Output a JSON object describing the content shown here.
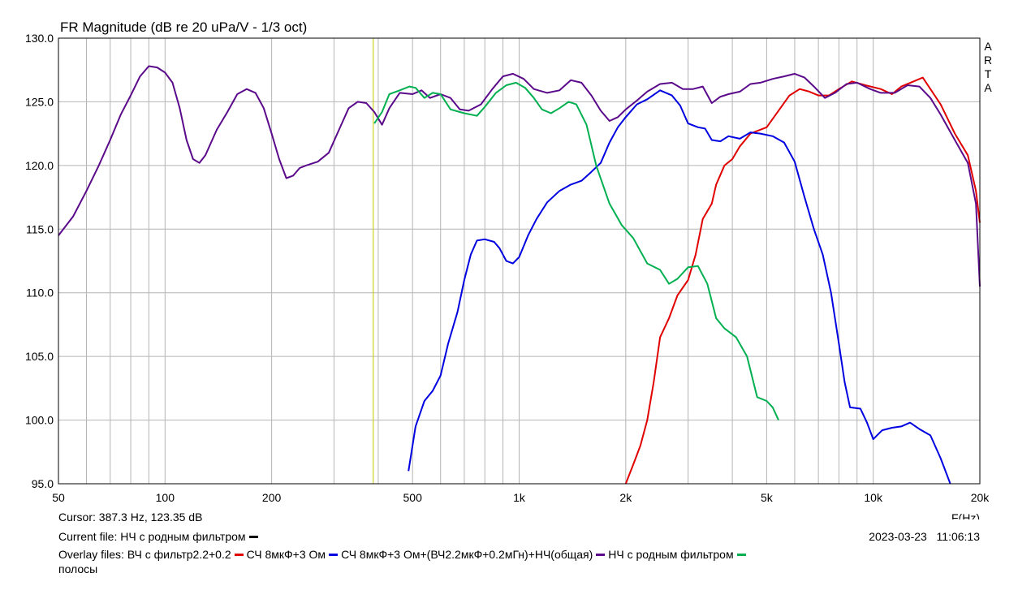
{
  "chart_data": {
    "type": "line",
    "title": "FR Magnitude (dB re 20 uPa/V - 1/3 oct)",
    "side_label": "ARTA",
    "xlabel": "F(Hz)",
    "x_scale": "log",
    "xlim": [
      50,
      20000
    ],
    "ylim": [
      95,
      130
    ],
    "x_ticks": [
      {
        "value": 50,
        "label": "50"
      },
      {
        "value": 100,
        "label": "100"
      },
      {
        "value": 200,
        "label": "200"
      },
      {
        "value": 500,
        "label": "500"
      },
      {
        "value": 1000,
        "label": "1k"
      },
      {
        "value": 2000,
        "label": "2k"
      },
      {
        "value": 5000,
        "label": "5k"
      },
      {
        "value": 10000,
        "label": "10k"
      },
      {
        "value": 20000,
        "label": "20k"
      }
    ],
    "y_ticks": [
      "130.0",
      "125.0",
      "120.0",
      "115.0",
      "110.0",
      "105.0",
      "100.0",
      "95.0"
    ],
    "grid": true,
    "cursor_freq": 387.3,
    "series": [
      {
        "name": "ВЧ с фильтр2.2+0.2",
        "color": "#e00000",
        "points": [
          [
            2000,
            95
          ],
          [
            2100,
            96.5
          ],
          [
            2200,
            98
          ],
          [
            2300,
            100
          ],
          [
            2400,
            103
          ],
          [
            2500,
            106.5
          ],
          [
            2650,
            108
          ],
          [
            2800,
            109.8
          ],
          [
            3000,
            111
          ],
          [
            3150,
            113
          ],
          [
            3300,
            115.8
          ],
          [
            3500,
            117
          ],
          [
            3600,
            118.5
          ],
          [
            3800,
            120
          ],
          [
            4000,
            120.5
          ],
          [
            4200,
            121.5
          ],
          [
            4500,
            122.5
          ],
          [
            5000,
            123
          ],
          [
            5400,
            124.3
          ],
          [
            5800,
            125.5
          ],
          [
            6200,
            126
          ],
          [
            6600,
            125.8
          ],
          [
            7000,
            125.5
          ],
          [
            7500,
            125.5
          ],
          [
            8000,
            126
          ],
          [
            8700,
            126.6
          ],
          [
            9500,
            126.3
          ],
          [
            10500,
            126
          ],
          [
            11300,
            125.6
          ],
          [
            12000,
            126.2
          ],
          [
            13000,
            126.6
          ],
          [
            13800,
            126.9
          ],
          [
            14500,
            126
          ],
          [
            15500,
            124.8
          ],
          [
            17000,
            122.5
          ],
          [
            18500,
            120.8
          ],
          [
            19500,
            118
          ],
          [
            20000,
            115.5
          ]
        ]
      },
      {
        "name": "СЧ 8мкФ+3 Ом",
        "color": "#0000e0",
        "points": [
          [
            487,
            96
          ],
          [
            510,
            99.5
          ],
          [
            540,
            101.5
          ],
          [
            570,
            102.3
          ],
          [
            600,
            103.5
          ],
          [
            630,
            106
          ],
          [
            670,
            108.5
          ],
          [
            700,
            111
          ],
          [
            730,
            113
          ],
          [
            760,
            114.1
          ],
          [
            800,
            114.2
          ],
          [
            850,
            114
          ],
          [
            880,
            113.5
          ],
          [
            920,
            112.5
          ],
          [
            960,
            112.3
          ],
          [
            1000,
            112.8
          ],
          [
            1060,
            114.5
          ],
          [
            1120,
            115.8
          ],
          [
            1200,
            117.1
          ],
          [
            1300,
            118
          ],
          [
            1400,
            118.5
          ],
          [
            1500,
            118.8
          ],
          [
            1600,
            119.5
          ],
          [
            1700,
            120.2
          ],
          [
            1800,
            121.8
          ],
          [
            1900,
            123
          ],
          [
            2000,
            123.8
          ],
          [
            2150,
            124.8
          ],
          [
            2300,
            125.2
          ],
          [
            2500,
            125.9
          ],
          [
            2700,
            125.5
          ],
          [
            2850,
            124.7
          ],
          [
            3000,
            123.3
          ],
          [
            3200,
            123
          ],
          [
            3350,
            122.9
          ],
          [
            3500,
            122
          ],
          [
            3700,
            121.9
          ],
          [
            3900,
            122.3
          ],
          [
            4200,
            122.1
          ],
          [
            4500,
            122.6
          ],
          [
            4800,
            122.5
          ],
          [
            5200,
            122.3
          ],
          [
            5600,
            121.8
          ],
          [
            6000,
            120.3
          ],
          [
            6400,
            117.5
          ],
          [
            6800,
            115
          ],
          [
            7200,
            113
          ],
          [
            7600,
            110
          ],
          [
            8000,
            106
          ],
          [
            8300,
            103
          ],
          [
            8600,
            101
          ],
          [
            9200,
            100.9
          ],
          [
            9600,
            99.8
          ],
          [
            10000,
            98.5
          ],
          [
            10600,
            99.2
          ],
          [
            11300,
            99.4
          ],
          [
            12000,
            99.5
          ],
          [
            12700,
            99.8
          ],
          [
            13500,
            99.3
          ],
          [
            14500,
            98.8
          ],
          [
            15500,
            97
          ],
          [
            16500,
            95
          ]
        ]
      },
      {
        "name": "СЧ 8мкФ+3 Ом+(ВЧ2.2мкФ+0.2мГн)+НЧ(общая)",
        "color": "#5a0a8a",
        "points": [
          [
            50,
            114.5
          ],
          [
            55,
            116
          ],
          [
            60,
            118
          ],
          [
            65,
            120
          ],
          [
            70,
            122
          ],
          [
            75,
            124
          ],
          [
            80,
            125.5
          ],
          [
            85,
            127
          ],
          [
            90,
            127.8
          ],
          [
            95,
            127.7
          ],
          [
            100,
            127.3
          ],
          [
            105,
            126.5
          ],
          [
            110,
            124.5
          ],
          [
            115,
            122
          ],
          [
            120,
            120.5
          ],
          [
            125,
            120.2
          ],
          [
            130,
            120.8
          ],
          [
            140,
            122.8
          ],
          [
            150,
            124.2
          ],
          [
            160,
            125.6
          ],
          [
            170,
            126
          ],
          [
            180,
            125.7
          ],
          [
            190,
            124.5
          ],
          [
            200,
            122.5
          ],
          [
            210,
            120.5
          ],
          [
            220,
            119
          ],
          [
            230,
            119.2
          ],
          [
            240,
            119.8
          ],
          [
            250,
            120
          ],
          [
            270,
            120.3
          ],
          [
            290,
            121
          ],
          [
            310,
            122.8
          ],
          [
            330,
            124.5
          ],
          [
            350,
            125
          ],
          [
            370,
            124.9
          ],
          [
            390,
            124.2
          ],
          [
            410,
            123.2
          ],
          [
            430,
            124.5
          ],
          [
            460,
            125.7
          ],
          [
            500,
            125.6
          ],
          [
            530,
            125.9
          ],
          [
            560,
            125.3
          ],
          [
            600,
            125.6
          ],
          [
            640,
            125.3
          ],
          [
            680,
            124.4
          ],
          [
            720,
            124.3
          ],
          [
            780,
            124.8
          ],
          [
            840,
            126
          ],
          [
            900,
            127
          ],
          [
            960,
            127.2
          ],
          [
            1030,
            126.8
          ],
          [
            1100,
            126
          ],
          [
            1200,
            125.7
          ],
          [
            1300,
            125.9
          ],
          [
            1400,
            126.7
          ],
          [
            1500,
            126.5
          ],
          [
            1600,
            125.5
          ],
          [
            1700,
            124.3
          ],
          [
            1800,
            123.5
          ],
          [
            1900,
            123.8
          ],
          [
            2000,
            124.4
          ],
          [
            2150,
            125.1
          ],
          [
            2300,
            125.8
          ],
          [
            2500,
            126.4
          ],
          [
            2700,
            126.5
          ],
          [
            2900,
            126
          ],
          [
            3100,
            126
          ],
          [
            3300,
            126.2
          ],
          [
            3500,
            124.9
          ],
          [
            3700,
            125.4
          ],
          [
            3900,
            125.6
          ],
          [
            4200,
            125.8
          ],
          [
            4500,
            126.4
          ],
          [
            4800,
            126.5
          ],
          [
            5200,
            126.8
          ],
          [
            5600,
            127
          ],
          [
            6000,
            127.2
          ],
          [
            6400,
            126.9
          ],
          [
            6800,
            126.2
          ],
          [
            7300,
            125.3
          ],
          [
            7800,
            125.7
          ],
          [
            8400,
            126.4
          ],
          [
            9000,
            126.5
          ],
          [
            9800,
            126
          ],
          [
            10500,
            125.7
          ],
          [
            11500,
            125.7
          ],
          [
            12500,
            126.3
          ],
          [
            13500,
            126.2
          ],
          [
            14500,
            125.3
          ],
          [
            15500,
            124
          ],
          [
            17000,
            122
          ],
          [
            18500,
            120.2
          ],
          [
            19500,
            117
          ],
          [
            20000,
            110.5
          ]
        ]
      },
      {
        "name": "НЧ с родным фильтром",
        "color": "#00b050",
        "points": [
          [
            390,
            123.3
          ],
          [
            410,
            124.2
          ],
          [
            430,
            125.6
          ],
          [
            460,
            125.9
          ],
          [
            490,
            126.2
          ],
          [
            510,
            126.1
          ],
          [
            540,
            125.3
          ],
          [
            570,
            125.7
          ],
          [
            600,
            125.6
          ],
          [
            640,
            124.4
          ],
          [
            700,
            124.1
          ],
          [
            760,
            123.9
          ],
          [
            800,
            124.6
          ],
          [
            860,
            125.7
          ],
          [
            920,
            126.3
          ],
          [
            980,
            126.5
          ],
          [
            1040,
            126.1
          ],
          [
            1100,
            125.3
          ],
          [
            1160,
            124.4
          ],
          [
            1230,
            124.1
          ],
          [
            1300,
            124.5
          ],
          [
            1380,
            125
          ],
          [
            1450,
            124.8
          ],
          [
            1550,
            123.2
          ],
          [
            1650,
            120
          ],
          [
            1800,
            117
          ],
          [
            1950,
            115.3
          ],
          [
            2100,
            114.3
          ],
          [
            2300,
            112.3
          ],
          [
            2500,
            111.8
          ],
          [
            2650,
            110.7
          ],
          [
            2800,
            111.1
          ],
          [
            3000,
            112
          ],
          [
            3200,
            112.1
          ],
          [
            3400,
            110.7
          ],
          [
            3600,
            108
          ],
          [
            3800,
            107.2
          ],
          [
            4100,
            106.5
          ],
          [
            4400,
            105
          ],
          [
            4700,
            101.8
          ],
          [
            5000,
            101.5
          ],
          [
            5200,
            101
          ],
          [
            5400,
            100
          ]
        ]
      }
    ]
  },
  "footer": {
    "cursor_text": "Cursor: 387.3 Hz, 123.35 dB",
    "current_file_label": "Current file:",
    "current_file_name": "НЧ с родным фильтром",
    "current_file_color": "#000000",
    "date": "2023-03-23",
    "time": "11:06:13",
    "overlay_label": "Overlay files:",
    "overlay_files": [
      {
        "name": "ВЧ с фильтр2.2+0.2",
        "color": "#e00000"
      },
      {
        "name": "СЧ 8мкФ+3 Ом",
        "color": "#0000e0"
      },
      {
        "name": "СЧ 8мкФ+3 Ом+(ВЧ2.2мкФ+0.2мГн)+НЧ(общая)",
        "color": "#5a0a8a"
      },
      {
        "name": "НЧ с родным фильтром",
        "color": "#00b050"
      }
    ],
    "overlay_extra": "полосы"
  }
}
